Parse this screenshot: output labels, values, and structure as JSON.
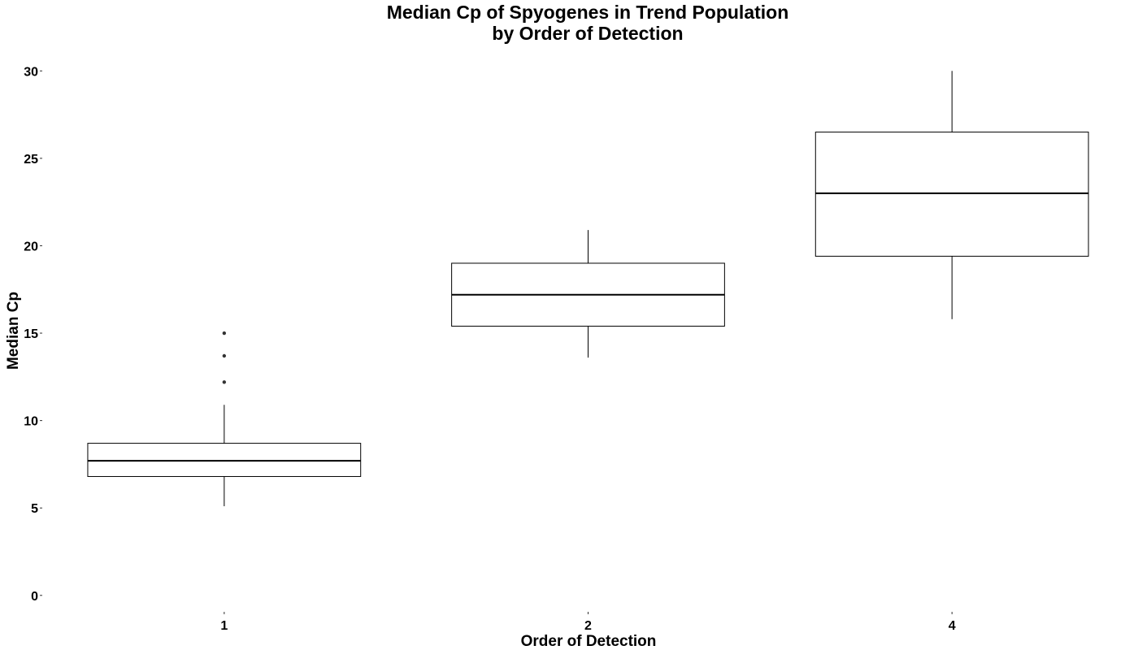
{
  "chart_data": {
    "type": "box",
    "title_lines": [
      "Median Cp of Spyogenes in Trend Population",
      "by Order of Detection"
    ],
    "xlabel": "Order of Detection",
    "ylabel": "Median Cp",
    "categories": [
      "1",
      "2",
      "4"
    ],
    "boxes": [
      {
        "category": "1",
        "whisker_low": 5.1,
        "q1": 6.8,
        "median": 7.7,
        "q3": 8.7,
        "whisker_high": 10.9,
        "outliers": [
          12.2,
          13.7,
          15.0
        ]
      },
      {
        "category": "2",
        "whisker_low": 13.6,
        "q1": 15.4,
        "median": 17.2,
        "q3": 19.0,
        "whisker_high": 20.9,
        "outliers": []
      },
      {
        "category": "4",
        "whisker_low": 15.8,
        "q1": 19.4,
        "median": 23.0,
        "q3": 26.5,
        "whisker_high": 30.0,
        "outliers": []
      }
    ],
    "yticks": [
      0,
      5,
      10,
      15,
      20,
      25,
      30
    ],
    "ylim": [
      -0.8,
      31.5
    ],
    "grid": false,
    "legend": "none",
    "colors": {
      "box_stroke": "#000000",
      "box_fill": "#ffffff",
      "outlier": "#333333"
    }
  }
}
